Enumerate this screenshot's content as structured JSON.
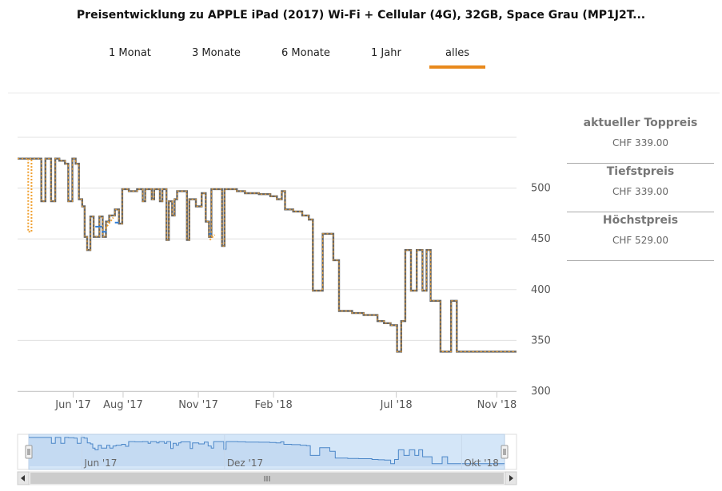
{
  "title": "Preisentwicklung zu APPLE iPad (2017) Wi-Fi + Cellular (4G), 32GB, Space Grau (MP1J2T...",
  "tabs": [
    {
      "label": "1 Monat",
      "active": false
    },
    {
      "label": "3 Monate",
      "active": false
    },
    {
      "label": "6 Monate",
      "active": false
    },
    {
      "label": "1 Jahr",
      "active": false
    },
    {
      "label": "alles",
      "active": true
    }
  ],
  "sidebar": [
    {
      "label": "aktueller Toppreis",
      "value": "CHF 339.00"
    },
    {
      "label": "Tiefstpreis",
      "value": "CHF 339.00"
    },
    {
      "label": "Höchstpreis",
      "value": "CHF 529.00"
    }
  ],
  "colors": {
    "accent": "#e8891c",
    "line_main": "#666666",
    "line_blue": "#2f7ed8",
    "line_orange": "#f0a030",
    "nav_fill": "#d4e6f8",
    "nav_line": "#4a86c8"
  },
  "chart_data": {
    "type": "line",
    "title": "",
    "xlabel": "",
    "ylabel": "",
    "ylim": [
      300,
      550
    ],
    "yticks": [
      "300",
      "350",
      "400",
      "450",
      "500"
    ],
    "xlim": [
      "2017-03-25",
      "2018-11-25"
    ],
    "xticks": [
      {
        "label": "Jun '17",
        "date": "2017-06-01"
      },
      {
        "label": "Aug '17",
        "date": "2017-08-01"
      },
      {
        "label": "Nov '17",
        "date": "2017-11-01"
      },
      {
        "label": "Feb '18",
        "date": "2018-02-01"
      },
      {
        "label": "Jul '18",
        "date": "2018-07-01"
      },
      {
        "label": "Nov '18",
        "date": "2018-11-01"
      }
    ],
    "step": true,
    "series": [
      {
        "style": "main",
        "points": [
          [
            "2017-03-25",
            529
          ],
          [
            "2017-04-23",
            529
          ],
          [
            "2017-04-23",
            487
          ],
          [
            "2017-04-28",
            487
          ],
          [
            "2017-04-28",
            529
          ],
          [
            "2017-05-05",
            529
          ],
          [
            "2017-05-05",
            487
          ],
          [
            "2017-05-10",
            487
          ],
          [
            "2017-05-10",
            529
          ],
          [
            "2017-05-15",
            529
          ],
          [
            "2017-05-15",
            527
          ],
          [
            "2017-05-22",
            527
          ],
          [
            "2017-05-22",
            524
          ],
          [
            "2017-05-26",
            524
          ],
          [
            "2017-05-26",
            487
          ],
          [
            "2017-05-31",
            487
          ],
          [
            "2017-05-31",
            529
          ],
          [
            "2017-06-04",
            529
          ],
          [
            "2017-06-04",
            524
          ],
          [
            "2017-06-08",
            524
          ],
          [
            "2017-06-08",
            489
          ],
          [
            "2017-06-12",
            489
          ],
          [
            "2017-06-12",
            482
          ],
          [
            "2017-06-15",
            482
          ],
          [
            "2017-06-15",
            452
          ],
          [
            "2017-06-18",
            452
          ],
          [
            "2017-06-18",
            439
          ],
          [
            "2017-06-22",
            439
          ],
          [
            "2017-06-22",
            472
          ],
          [
            "2017-06-26",
            472
          ],
          [
            "2017-06-26",
            452
          ],
          [
            "2017-07-03",
            452
          ],
          [
            "2017-07-03",
            472
          ],
          [
            "2017-07-07",
            472
          ],
          [
            "2017-07-07",
            452
          ],
          [
            "2017-07-11",
            452
          ],
          [
            "2017-07-11",
            467
          ],
          [
            "2017-07-15",
            467
          ],
          [
            "2017-07-15",
            473
          ],
          [
            "2017-07-22",
            473
          ],
          [
            "2017-07-22",
            479
          ],
          [
            "2017-07-27",
            479
          ],
          [
            "2017-07-27",
            465
          ],
          [
            "2017-07-31",
            465
          ],
          [
            "2017-07-31",
            499
          ],
          [
            "2017-08-08",
            499
          ],
          [
            "2017-08-08",
            497
          ],
          [
            "2017-08-18",
            497
          ],
          [
            "2017-08-18",
            499
          ],
          [
            "2017-08-25",
            499
          ],
          [
            "2017-08-25",
            487
          ],
          [
            "2017-08-28",
            487
          ],
          [
            "2017-08-28",
            499
          ],
          [
            "2017-09-05",
            499
          ],
          [
            "2017-09-05",
            489
          ],
          [
            "2017-09-08",
            489
          ],
          [
            "2017-09-08",
            499
          ],
          [
            "2017-09-15",
            499
          ],
          [
            "2017-09-15",
            487
          ],
          [
            "2017-09-18",
            487
          ],
          [
            "2017-09-18",
            499
          ],
          [
            "2017-09-23",
            499
          ],
          [
            "2017-09-23",
            449
          ],
          [
            "2017-09-26",
            449
          ],
          [
            "2017-09-26",
            487
          ],
          [
            "2017-09-30",
            487
          ],
          [
            "2017-09-30",
            473
          ],
          [
            "2017-10-03",
            473
          ],
          [
            "2017-10-03",
            489
          ],
          [
            "2017-10-06",
            489
          ],
          [
            "2017-10-06",
            497
          ],
          [
            "2017-10-18",
            497
          ],
          [
            "2017-10-18",
            449
          ],
          [
            "2017-10-21",
            449
          ],
          [
            "2017-10-21",
            489
          ],
          [
            "2017-10-29",
            489
          ],
          [
            "2017-10-29",
            482
          ],
          [
            "2017-11-05",
            482
          ],
          [
            "2017-11-05",
            495
          ],
          [
            "2017-11-10",
            495
          ],
          [
            "2017-11-10",
            467
          ],
          [
            "2017-11-14",
            467
          ],
          [
            "2017-11-14",
            452
          ],
          [
            "2017-11-17",
            452
          ],
          [
            "2017-11-17",
            499
          ],
          [
            "2017-11-30",
            499
          ],
          [
            "2017-11-30",
            443
          ],
          [
            "2017-12-03",
            443
          ],
          [
            "2017-12-03",
            499
          ],
          [
            "2017-12-18",
            499
          ],
          [
            "2017-12-18",
            497
          ],
          [
            "2017-12-28",
            497
          ],
          [
            "2017-12-28",
            495
          ],
          [
            "2018-01-14",
            495
          ],
          [
            "2018-01-14",
            494
          ],
          [
            "2018-01-28",
            494
          ],
          [
            "2018-01-28",
            492
          ],
          [
            "2018-02-05",
            492
          ],
          [
            "2018-02-05",
            489
          ],
          [
            "2018-02-11",
            489
          ],
          [
            "2018-02-11",
            497
          ],
          [
            "2018-02-15",
            497
          ],
          [
            "2018-02-15",
            479
          ],
          [
            "2018-02-25",
            479
          ],
          [
            "2018-02-25",
            477
          ],
          [
            "2018-03-08",
            477
          ],
          [
            "2018-03-08",
            473
          ],
          [
            "2018-03-16",
            473
          ],
          [
            "2018-03-16",
            469
          ],
          [
            "2018-03-21",
            469
          ],
          [
            "2018-03-21",
            399
          ],
          [
            "2018-04-02",
            399
          ],
          [
            "2018-04-02",
            455
          ],
          [
            "2018-04-15",
            455
          ],
          [
            "2018-04-15",
            429
          ],
          [
            "2018-04-22",
            429
          ],
          [
            "2018-04-22",
            379
          ],
          [
            "2018-05-08",
            379
          ],
          [
            "2018-05-08",
            377
          ],
          [
            "2018-05-22",
            377
          ],
          [
            "2018-05-22",
            375
          ],
          [
            "2018-06-08",
            375
          ],
          [
            "2018-06-08",
            369
          ],
          [
            "2018-06-16",
            369
          ],
          [
            "2018-06-16",
            367
          ],
          [
            "2018-06-24",
            367
          ],
          [
            "2018-06-24",
            365
          ],
          [
            "2018-07-02",
            365
          ],
          [
            "2018-07-02",
            339
          ],
          [
            "2018-07-07",
            339
          ],
          [
            "2018-07-07",
            369
          ],
          [
            "2018-07-12",
            369
          ],
          [
            "2018-07-12",
            439
          ],
          [
            "2018-07-19",
            439
          ],
          [
            "2018-07-19",
            399
          ],
          [
            "2018-07-26",
            399
          ],
          [
            "2018-07-26",
            439
          ],
          [
            "2018-08-02",
            439
          ],
          [
            "2018-08-02",
            399
          ],
          [
            "2018-08-07",
            399
          ],
          [
            "2018-08-07",
            439
          ],
          [
            "2018-08-12",
            439
          ],
          [
            "2018-08-12",
            389
          ],
          [
            "2018-08-24",
            389
          ],
          [
            "2018-08-24",
            339
          ],
          [
            "2018-09-06",
            339
          ],
          [
            "2018-09-06",
            389
          ],
          [
            "2018-09-13",
            389
          ],
          [
            "2018-09-13",
            339
          ],
          [
            "2018-11-25",
            339
          ]
        ]
      },
      {
        "style": "blue",
        "points": [
          [
            "2017-06-28",
            462
          ],
          [
            "2017-07-06",
            462
          ],
          [
            "2017-07-06",
            457
          ],
          [
            "2017-07-12",
            457
          ],
          [
            "2017-07-22",
            466
          ],
          [
            "2017-07-27",
            466
          ],
          [
            "2017-11-14",
            455
          ],
          [
            "2017-11-17",
            455
          ]
        ]
      },
      {
        "style": "orange",
        "points": [
          [
            "2017-04-07",
            529
          ],
          [
            "2017-04-07",
            457
          ],
          [
            "2017-04-11",
            457
          ],
          [
            "2017-04-11",
            529
          ],
          [
            "2017-07-10",
            460
          ],
          [
            "2017-07-20",
            471
          ],
          [
            "2017-11-15",
            449
          ],
          [
            "2017-11-21",
            454
          ]
        ]
      }
    ],
    "navigator": {
      "xticks": [
        {
          "label": "Jun '17",
          "date": "2017-06-01"
        },
        {
          "label": "Dez '17",
          "date": "2017-12-01"
        },
        {
          "label": "Okt '18",
          "date": "2018-10-01"
        }
      ],
      "scroll_handle": "III"
    }
  }
}
